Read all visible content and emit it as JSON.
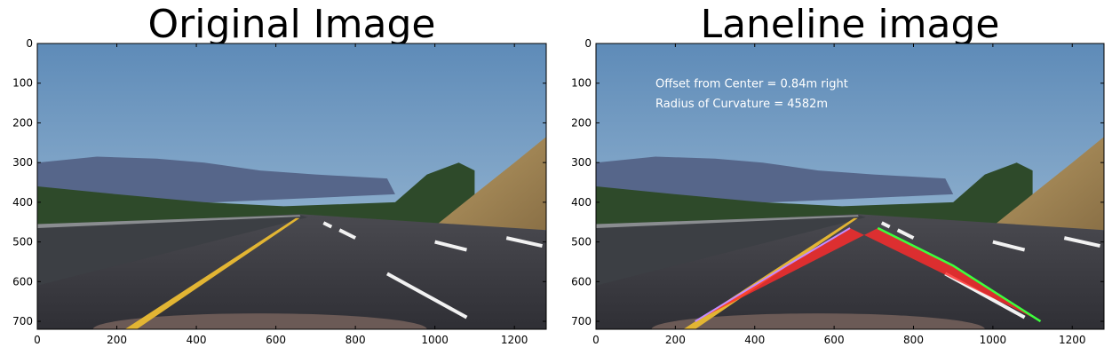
{
  "chart_data": [
    {
      "type": "image",
      "title": "Original Image",
      "xlim": [
        0,
        1280
      ],
      "ylim": [
        720,
        0
      ],
      "xticks": [
        0,
        200,
        400,
        600,
        800,
        1000,
        1200
      ],
      "yticks": [
        0,
        100,
        200,
        300,
        400,
        500,
        600,
        700
      ]
    },
    {
      "type": "image",
      "title": "Laneline image",
      "xlim": [
        0,
        1280
      ],
      "ylim": [
        720,
        0
      ],
      "xticks": [
        0,
        200,
        400,
        600,
        800,
        1000,
        1200
      ],
      "yticks": [
        0,
        100,
        200,
        300,
        400,
        500,
        600,
        700
      ],
      "annotations": [
        "Offset from Center = 0.84m right",
        "Radius of Curvature = 4582m"
      ],
      "lane_region": {
        "color": "#ff2b2b",
        "left_edge": [
          [
            250,
            700
          ],
          [
            480,
            560
          ],
          [
            640,
            465
          ]
        ],
        "right_edge": [
          [
            710,
            465
          ],
          [
            900,
            560
          ],
          [
            1120,
            700
          ]
        ]
      }
    }
  ]
}
